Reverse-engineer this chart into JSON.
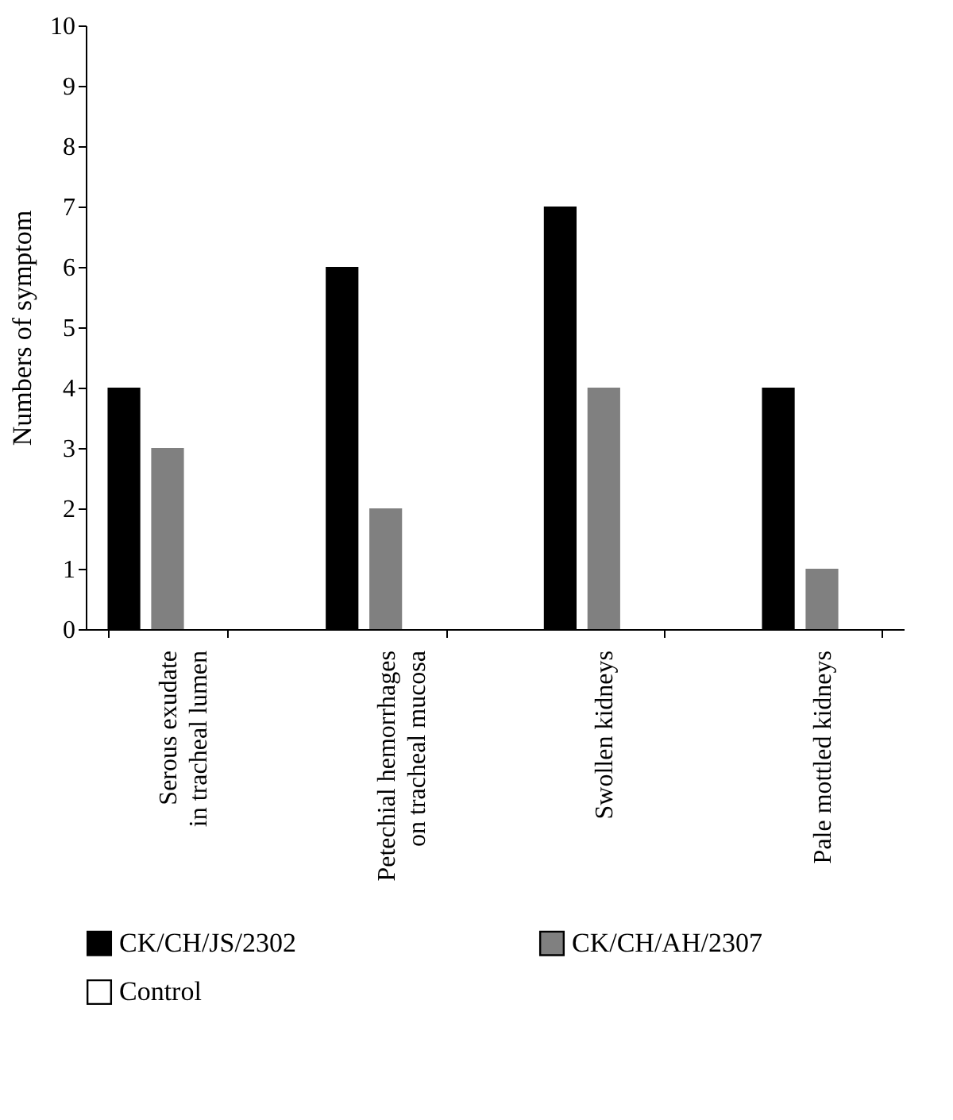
{
  "chart_data": {
    "type": "bar",
    "ylabel": "Numbers of symptom",
    "categories": [
      "Serous exudate in tracheal lumen",
      "Petechial hemorrhages on tracheal mucosa",
      "Swollen kidneys",
      "Pale mottled kidneys"
    ],
    "series": [
      {
        "name": "CK/CH/JS/2302",
        "color": "#000000",
        "values": [
          4,
          6,
          7,
          4
        ]
      },
      {
        "name": "CK/CH/AH/2307",
        "color": "#808080",
        "values": [
          3,
          2,
          4,
          1
        ]
      },
      {
        "name": "Control",
        "color": "#ffffff",
        "values": [
          0,
          0,
          0,
          0
        ]
      }
    ],
    "ylim": [
      0,
      10
    ],
    "yticks": [
      0,
      1,
      2,
      3,
      4,
      5,
      6,
      7,
      8,
      9,
      10
    ],
    "grid": false,
    "legend": "bottom"
  }
}
